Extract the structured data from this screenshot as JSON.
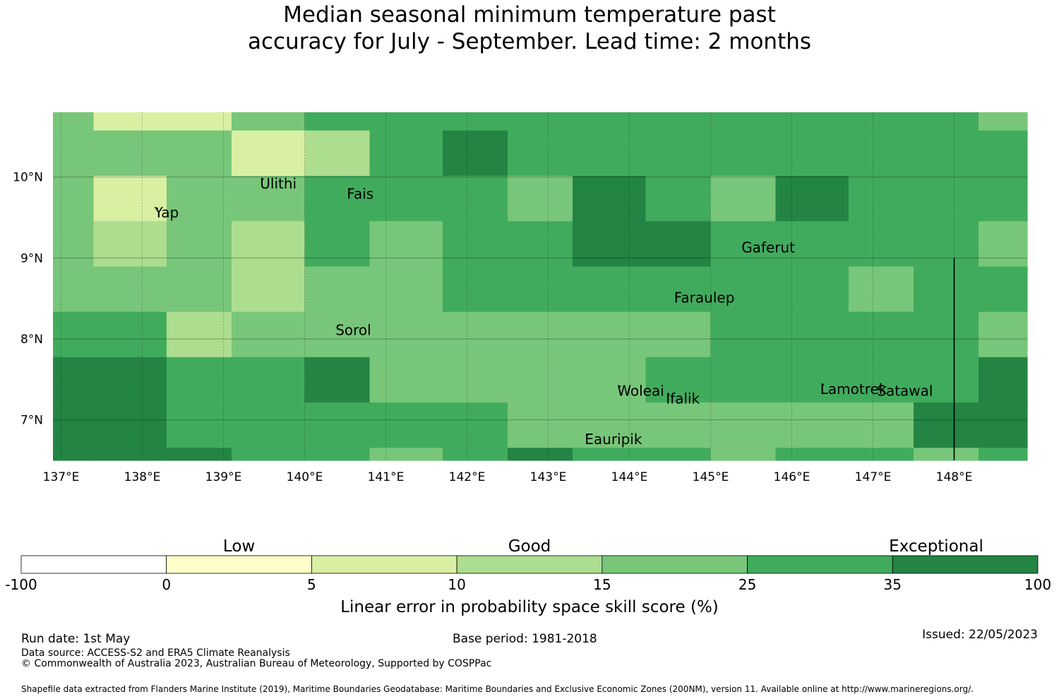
{
  "title": {
    "line1": "Median seasonal minimum temperature past",
    "line2": "accuracy for July - September. Lead time: 2 months"
  },
  "map": {
    "lon_range": [
      136.9,
      148.9
    ],
    "lat_range": [
      6.5,
      10.8
    ],
    "lon_ticks": [
      137,
      138,
      139,
      140,
      141,
      142,
      143,
      144,
      145,
      146,
      147,
      148
    ],
    "lon_tick_labels": [
      "137°E",
      "138°E",
      "139°E",
      "140°E",
      "141°E",
      "142°E",
      "143°E",
      "144°E",
      "145°E",
      "146°E",
      "147°E",
      "148°E"
    ],
    "lat_ticks": [
      7,
      8,
      9,
      10
    ],
    "lat_tick_labels": [
      "7°N",
      "8°N",
      "9°N",
      "10°N"
    ],
    "grid_lines": true,
    "vertical_boundary_line_lon": 148,
    "cell_lon_edges": [
      136.9,
      137.4,
      138.3,
      139.1,
      140.0,
      140.8,
      141.7,
      142.5,
      143.3,
      144.2,
      145.0,
      145.8,
      146.7,
      147.5,
      148.3,
      148.9
    ],
    "cell_lat_edges": [
      6.5,
      6.66,
      7.22,
      7.78,
      8.34,
      8.9,
      9.46,
      10.02,
      10.58,
      10.8
    ],
    "skill_class_rows_south_to_north": [
      [
        6,
        6,
        6,
        5,
        5,
        4,
        5,
        6,
        5,
        5,
        4,
        5,
        5,
        4,
        5
      ],
      [
        6,
        6,
        5,
        5,
        5,
        5,
        5,
        4,
        4,
        4,
        4,
        4,
        4,
        6,
        6
      ],
      [
        6,
        6,
        5,
        5,
        6,
        4,
        4,
        4,
        4,
        5,
        5,
        5,
        5,
        5,
        6
      ],
      [
        5,
        5,
        3,
        4,
        4,
        4,
        4,
        4,
        4,
        4,
        5,
        5,
        5,
        5,
        4
      ],
      [
        4,
        4,
        4,
        3,
        4,
        4,
        5,
        5,
        5,
        5,
        5,
        5,
        4,
        5,
        5
      ],
      [
        4,
        3,
        4,
        3,
        5,
        4,
        5,
        5,
        6,
        6,
        5,
        5,
        5,
        5,
        4
      ],
      [
        4,
        2,
        4,
        4,
        5,
        5,
        5,
        4,
        6,
        5,
        4,
        6,
        5,
        5,
        5
      ],
      [
        4,
        4,
        4,
        2,
        3,
        5,
        6,
        5,
        5,
        5,
        5,
        5,
        5,
        5,
        5
      ],
      [
        4,
        2,
        2,
        4,
        5,
        5,
        5,
        5,
        5,
        5,
        5,
        5,
        5,
        5,
        4
      ]
    ],
    "places": [
      {
        "name": "Ulithi",
        "lon": 139.45,
        "lat": 9.86
      },
      {
        "name": "Fais",
        "lon": 140.52,
        "lat": 9.73
      },
      {
        "name": "Yap",
        "lon": 138.15,
        "lat": 9.5
      },
      {
        "name": "Gaferut",
        "lon": 145.38,
        "lat": 9.07
      },
      {
        "name": "Faraulep",
        "lon": 144.55,
        "lat": 8.45
      },
      {
        "name": "Sorol",
        "lon": 140.38,
        "lat": 8.05
      },
      {
        "name": "Woleai",
        "lon": 143.85,
        "lat": 7.3
      },
      {
        "name": "Ifalik",
        "lon": 144.45,
        "lat": 7.2
      },
      {
        "name": "Lamotrek",
        "lon": 146.35,
        "lat": 7.32
      },
      {
        "name": "Satawal",
        "lon": 147.05,
        "lat": 7.3
      },
      {
        "name": "Eauripik",
        "lon": 143.45,
        "lat": 6.7
      }
    ]
  },
  "colorbar": {
    "boundaries": [
      "-100",
      "0",
      "5",
      "10",
      "15",
      "25",
      "35",
      "100"
    ],
    "colors": [
      "#ffffff",
      "#ffffcc",
      "#d9f0a3",
      "#addd8e",
      "#78c679",
      "#41ab5d",
      "#238443"
    ],
    "category_labels": [
      "Low",
      "Good",
      "Exceptional"
    ],
    "label": "Linear error in probability space skill score (%)"
  },
  "footer": {
    "run_date": "Run date: 1st May",
    "base_period": "Base period: 1981-2018",
    "issued": "Issued: 22/05/2023",
    "data_source": "Data source: ACCESS-S2 and ERA5 Climate Reanalysis",
    "copyright": "© Commonwealth of Australia 2023, Australian Bureau of Meteorology, Supported by COSPPac",
    "shapefile": "Shapefile data extracted from Flanders Marine Institute (2019), Maritime Boundaries Geodatabase: Maritime Boundaries and Exclusive Economic Zones (200NM), version 11. Available online at http://www.marineregions.org/."
  }
}
